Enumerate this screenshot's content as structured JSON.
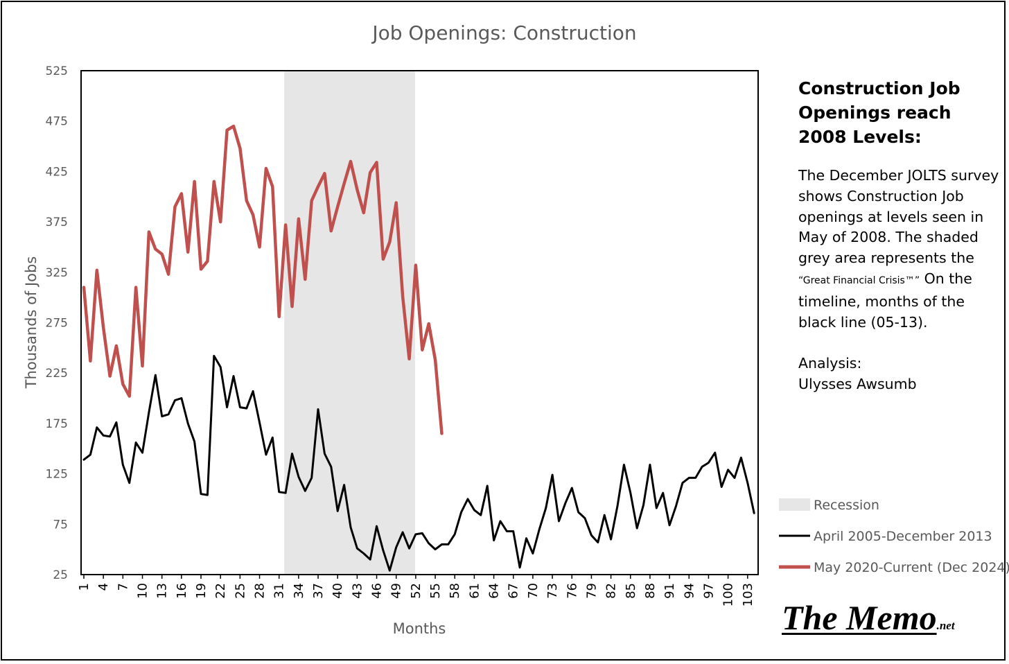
{
  "chart_data": {
    "type": "line",
    "title": "Job Openings: Construction",
    "xlabel": "Months",
    "ylabel": "Thousands of Jobs",
    "ylim": [
      25,
      525
    ],
    "yticks": [
      25,
      75,
      125,
      175,
      225,
      275,
      325,
      375,
      425,
      475,
      525
    ],
    "xlim": [
      1,
      104
    ],
    "xticks": [
      1,
      4,
      7,
      10,
      13,
      16,
      19,
      22,
      25,
      28,
      31,
      34,
      37,
      40,
      43,
      46,
      49,
      52,
      55,
      58,
      61,
      64,
      67,
      70,
      73,
      76,
      79,
      82,
      85,
      88,
      91,
      94,
      97,
      100,
      103
    ],
    "grid": false,
    "legend_position": "right",
    "shaded_regions": [
      {
        "name": "Recession",
        "x_start": 31.8,
        "x_end": 51.9,
        "color": "#e6e6e6"
      }
    ],
    "series": [
      {
        "name": "April 2005-December 2013",
        "color": "#000000",
        "x": [
          1,
          2,
          3,
          4,
          5,
          6,
          7,
          8,
          9,
          10,
          11,
          12,
          13,
          14,
          15,
          16,
          17,
          18,
          19,
          20,
          21,
          22,
          23,
          24,
          25,
          26,
          27,
          28,
          29,
          30,
          31,
          32,
          33,
          34,
          35,
          36,
          37,
          38,
          39,
          40,
          41,
          42,
          43,
          44,
          45,
          46,
          47,
          48,
          49,
          50,
          51,
          52,
          53,
          54,
          55,
          56,
          57,
          58,
          59,
          60,
          61,
          62,
          63,
          64,
          65,
          66,
          67,
          68,
          69,
          70,
          71,
          72,
          73,
          74,
          75,
          76,
          77,
          78,
          79,
          80,
          81,
          82,
          83,
          84,
          85,
          86,
          87,
          88,
          89,
          90,
          91,
          92,
          93,
          94,
          95,
          96,
          97,
          98,
          99,
          100,
          101,
          102,
          103,
          104
        ],
        "values": [
          139,
          144,
          171,
          163,
          162,
          176,
          134,
          116,
          156,
          146,
          186,
          223,
          182,
          184,
          198,
          200,
          175,
          157,
          105,
          104,
          242,
          231,
          191,
          222,
          191,
          190,
          207,
          176,
          144,
          161,
          107,
          106,
          145,
          122,
          108,
          121,
          189,
          145,
          132,
          88,
          114,
          72,
          51,
          46,
          40,
          73,
          49,
          29,
          52,
          67,
          51,
          65,
          66,
          56,
          50,
          55,
          55,
          65,
          87,
          100,
          89,
          84,
          113,
          59,
          78,
          68,
          68,
          32,
          61,
          46,
          70,
          91,
          124,
          78,
          96,
          111,
          87,
          81,
          64,
          57,
          84,
          60,
          93,
          134,
          106,
          71,
          94,
          134,
          91,
          106,
          74,
          93,
          116,
          121,
          121,
          132,
          136,
          146,
          112,
          129,
          121,
          141,
          116,
          86
        ]
      },
      {
        "name": "May 2020-Current (Dec 2024)",
        "color": "#c0504d",
        "x": [
          1,
          2,
          3,
          4,
          5,
          6,
          7,
          8,
          9,
          10,
          11,
          12,
          13,
          14,
          15,
          16,
          17,
          18,
          19,
          20,
          21,
          22,
          23,
          24,
          25,
          26,
          27,
          28,
          29,
          30,
          31,
          32,
          33,
          34,
          35,
          36,
          37,
          38,
          39,
          40,
          41,
          42,
          43,
          44,
          45,
          46,
          47,
          48,
          49,
          50,
          51,
          52,
          53,
          54,
          55,
          56
        ],
        "values": [
          310,
          237,
          327,
          270,
          222,
          252,
          214,
          202,
          310,
          232,
          365,
          348,
          343,
          323,
          390,
          403,
          345,
          415,
          328,
          336,
          415,
          375,
          466,
          470,
          448,
          396,
          382,
          350,
          428,
          410,
          281,
          372,
          291,
          378,
          318,
          396,
          410,
          423,
          366,
          390,
          413,
          435,
          407,
          384,
          424,
          434,
          338,
          355,
          394,
          301,
          239,
          332,
          248,
          274,
          238,
          165
        ]
      }
    ],
    "legend": [
      {
        "label": "Recession",
        "kind": "area",
        "color": "#e6e6e6"
      },
      {
        "label": "April 2005-December 2013",
        "kind": "line",
        "color": "#000000"
      },
      {
        "label": "May 2020-Current (Dec 2024)",
        "kind": "line",
        "color": "#c0504d"
      }
    ]
  },
  "sidepanel": {
    "title": "Construction Job\nOpenings reach\n2008 Levels:",
    "body_part1": "The December JOLTS survey shows Construction Job openings at levels seen in May of 2008. The shaded grey area represents the ",
    "body_small": "“Great Financial Crisis™”",
    "body_part2": " On the timeline, months of the black line (05-13).",
    "analysis": "Analysis:\nUlysses Awsumb"
  },
  "brand": {
    "name": "The Memo",
    "suffix": ".net"
  }
}
